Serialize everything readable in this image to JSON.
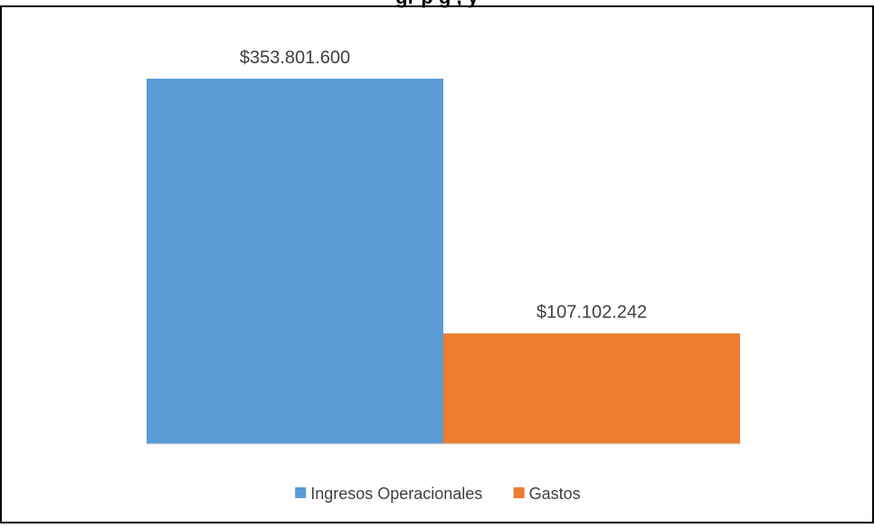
{
  "chart_data": {
    "type": "bar",
    "title": "",
    "title_visible_fragment": "gr          p       g     ,          y",
    "xlabel": "",
    "ylabel": "",
    "grid": false,
    "legend_position": "bottom",
    "ylim": [
      0,
      353801600
    ],
    "series": [
      {
        "name": "Ingresos Operacionales",
        "value": 353801600,
        "label": "$353.801.600",
        "color": "#5B9BD5"
      },
      {
        "name": "Gastos",
        "value": 107102242,
        "label": "$107.102.242",
        "color": "#ED7D31"
      }
    ]
  }
}
